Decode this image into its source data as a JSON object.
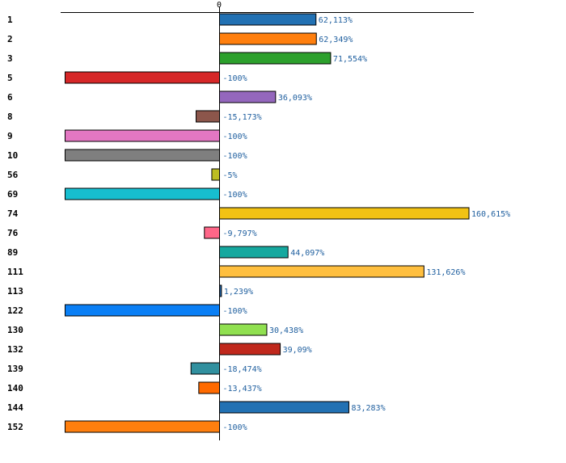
{
  "chart_data": {
    "type": "bar",
    "orientation": "horizontal",
    "title": "",
    "xlabel": "",
    "ylabel": "",
    "zero_tick_label": "0",
    "xlim": [
      -100,
      160.615
    ],
    "categories": [
      "1",
      "2",
      "3",
      "5",
      "6",
      "8",
      "9",
      "10",
      "56",
      "69",
      "74",
      "76",
      "89",
      "111",
      "113",
      "122",
      "130",
      "132",
      "139",
      "140",
      "144",
      "152"
    ],
    "values": [
      62.113,
      62.349,
      71.554,
      -100,
      36.093,
      -15.173,
      -100,
      -100,
      -5,
      -100,
      160.615,
      -9.797,
      44.097,
      131.626,
      1.239,
      -100,
      30.438,
      39.09,
      -18.474,
      -13.437,
      83.283,
      -100
    ],
    "value_labels": [
      "62,113%",
      "62,349%",
      "71,554%",
      "-100%",
      "36,093%",
      "-15,173%",
      "-100%",
      "-100%",
      "-5%",
      "-100%",
      "160,615%",
      "-9,797%",
      "44,097%",
      "131,626%",
      "1,239%",
      "-100%",
      "30,438%",
      "39,09%",
      "-18,474%",
      "-13,437%",
      "83,283%",
      "-100%"
    ],
    "colors": [
      "#2271b3",
      "#ff7f0e",
      "#2ca02c",
      "#d62728",
      "#9467bd",
      "#8c564b",
      "#e377c2",
      "#7f7f7f",
      "#bcbd22",
      "#17becf",
      "#f2c214",
      "#ff6688",
      "#16a89f",
      "#ffbf3f",
      "#1f5fa0",
      "#0a7ff5",
      "#90e050",
      "#c0281c",
      "#31909f",
      "#ff6a00",
      "#2271b3",
      "#ff7f0e"
    ],
    "grid": false,
    "legend": "none"
  }
}
